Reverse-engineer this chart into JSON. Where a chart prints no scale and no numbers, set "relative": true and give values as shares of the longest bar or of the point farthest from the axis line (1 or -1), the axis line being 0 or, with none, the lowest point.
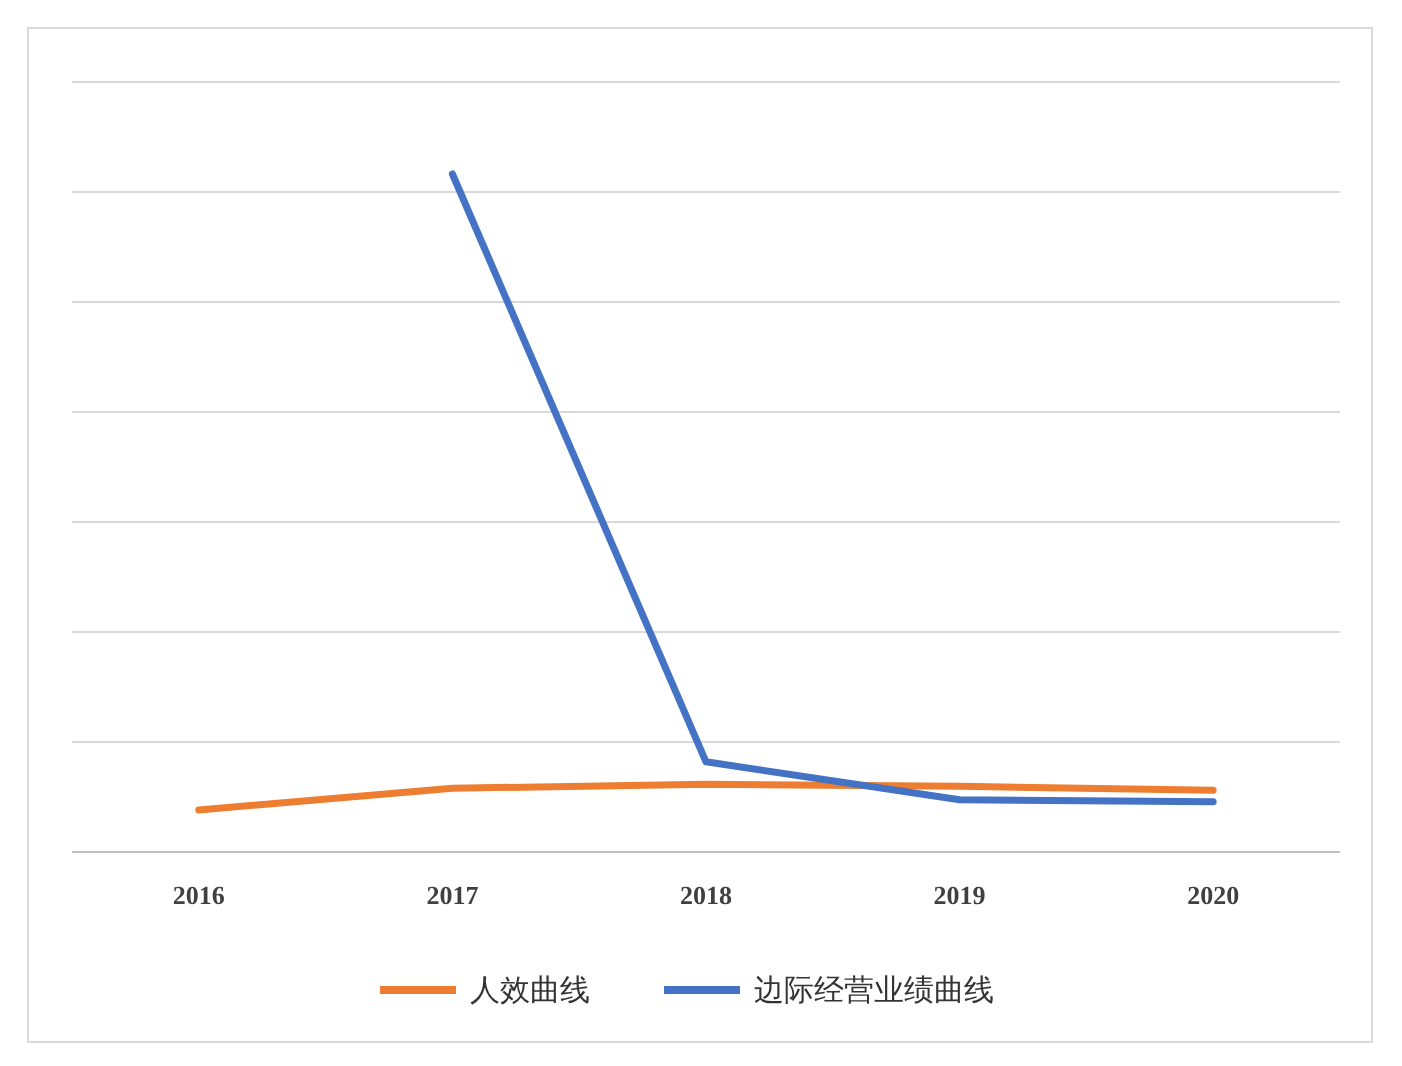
{
  "chart_data": {
    "type": "line",
    "relative": true,
    "categories": [
      "2016",
      "2017",
      "2018",
      "2019",
      "2020"
    ],
    "series": [
      {
        "name": "人效曲线",
        "color": "#ed7d31",
        "values": [
          0.062,
          0.094,
          0.1,
          0.097,
          0.091
        ]
      },
      {
        "name": "边际经营业绩曲线",
        "color": "#4472c4",
        "values": [
          null,
          1,
          0.133,
          0.077,
          0.074
        ]
      }
    ],
    "grid": "y",
    "legend": "bottom",
    "marker": "none",
    "line_style": "solid"
  }
}
